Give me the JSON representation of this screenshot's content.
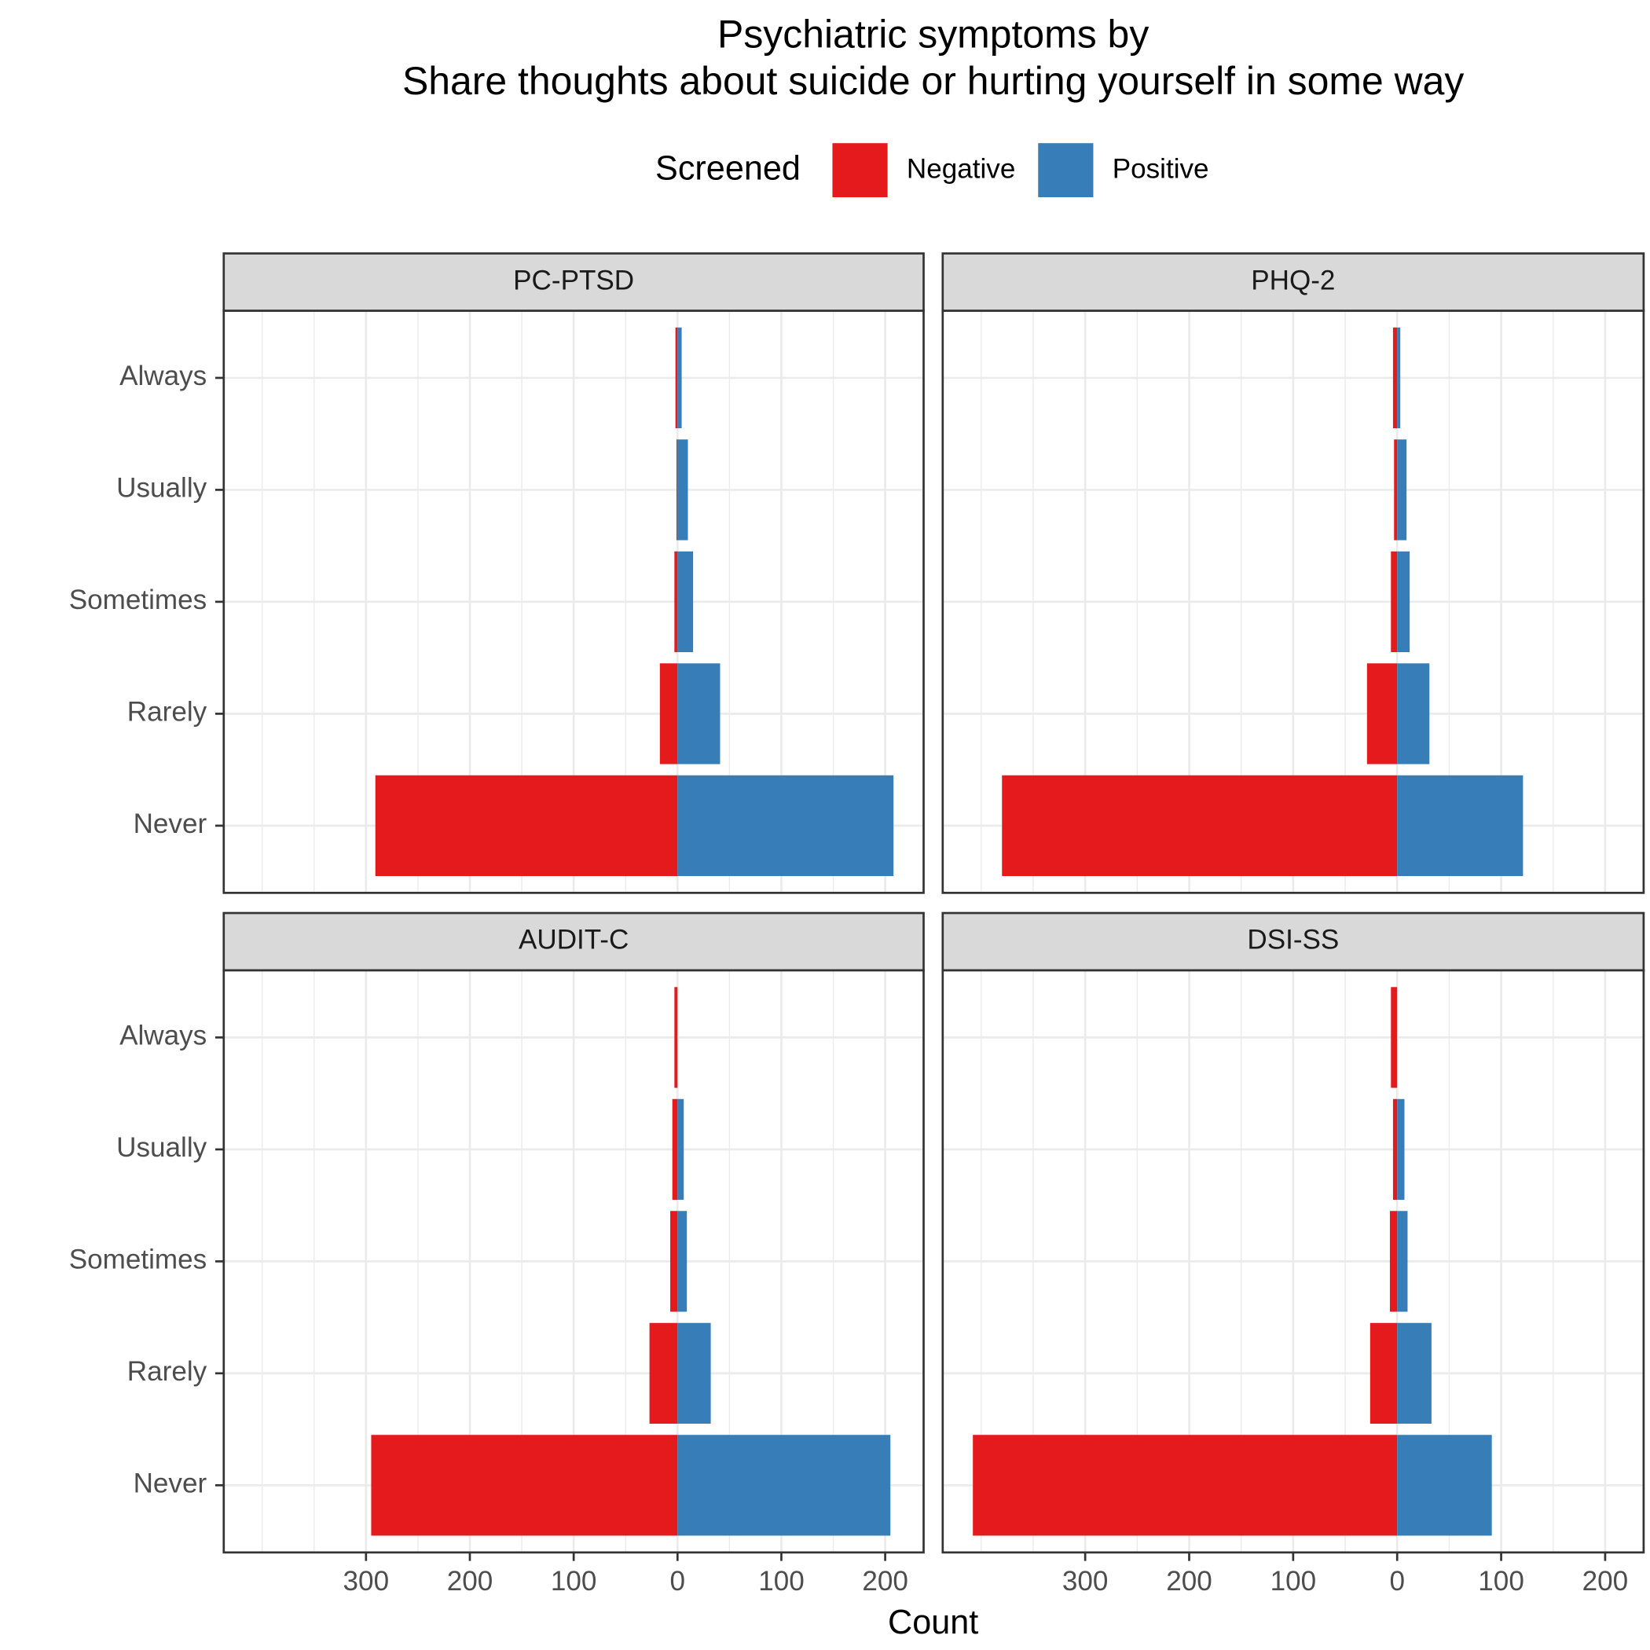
{
  "title": [
    "Psychiatric symptoms by",
    "Share thoughts about suicide or hurting yourself in some way"
  ],
  "legend_title": "Screened",
  "x_label": "Count",
  "chart_data": [
    {
      "type": "bar",
      "orientation": "horizontal",
      "title": "PC-PTSD",
      "categories": [
        "Never",
        "Rarely",
        "Sometimes",
        "Usually",
        "Always"
      ],
      "series": [
        {
          "name": "Negative",
          "color": "#e41a1c",
          "values": [
            -291,
            -17,
            -3,
            -1,
            -2
          ]
        },
        {
          "name": "Positive",
          "color": "#377eb8",
          "values": [
            208,
            41,
            15,
            10,
            4
          ]
        }
      ],
      "xlim": [
        -437,
        237
      ],
      "xticks": [
        {
          "value": -300,
          "label": "300"
        },
        {
          "value": -200,
          "label": "200"
        },
        {
          "value": -100,
          "label": "100"
        },
        0,
        100,
        200
      ],
      "grid": true
    },
    {
      "type": "bar",
      "orientation": "horizontal",
      "title": "PHQ-2",
      "categories": [
        "Never",
        "Rarely",
        "Sometimes",
        "Usually",
        "Always"
      ],
      "series": [
        {
          "name": "Negative",
          "color": "#e41a1c",
          "values": [
            -380,
            -29,
            -6,
            -3,
            -4
          ]
        },
        {
          "name": "Positive",
          "color": "#377eb8",
          "values": [
            121,
            31,
            12,
            9,
            3
          ]
        }
      ],
      "xlim": [
        -437,
        237
      ],
      "xticks": [
        {
          "value": -300,
          "label": "300"
        },
        {
          "value": -200,
          "label": "200"
        },
        {
          "value": -100,
          "label": "100"
        },
        0,
        100,
        200
      ],
      "grid": true
    },
    {
      "type": "bar",
      "orientation": "horizontal",
      "title": "AUDIT-C",
      "categories": [
        "Never",
        "Rarely",
        "Sometimes",
        "Usually",
        "Always"
      ],
      "series": [
        {
          "name": "Negative",
          "color": "#e41a1c",
          "values": [
            -295,
            -27,
            -7,
            -5,
            -3
          ]
        },
        {
          "name": "Positive",
          "color": "#377eb8",
          "values": [
            205,
            32,
            9,
            6,
            0
          ]
        }
      ],
      "xlim": [
        -437,
        237
      ],
      "xticks": [
        {
          "value": -300,
          "label": "300"
        },
        {
          "value": -200,
          "label": "200"
        },
        {
          "value": -100,
          "label": "100"
        },
        0,
        100,
        200
      ],
      "grid": true
    },
    {
      "type": "bar",
      "orientation": "horizontal",
      "title": "DSI-SS",
      "categories": [
        "Never",
        "Rarely",
        "Sometimes",
        "Usually",
        "Always"
      ],
      "series": [
        {
          "name": "Negative",
          "color": "#e41a1c",
          "values": [
            -408,
            -26,
            -7,
            -4,
            -6
          ]
        },
        {
          "name": "Positive",
          "color": "#377eb8",
          "values": [
            91,
            33,
            10,
            7,
            0
          ]
        }
      ],
      "xlim": [
        -437,
        237
      ],
      "xticks": [
        {
          "value": -300,
          "label": "300"
        },
        {
          "value": -200,
          "label": "200"
        },
        {
          "value": -100,
          "label": "100"
        },
        0,
        100,
        200
      ],
      "grid": true
    }
  ]
}
